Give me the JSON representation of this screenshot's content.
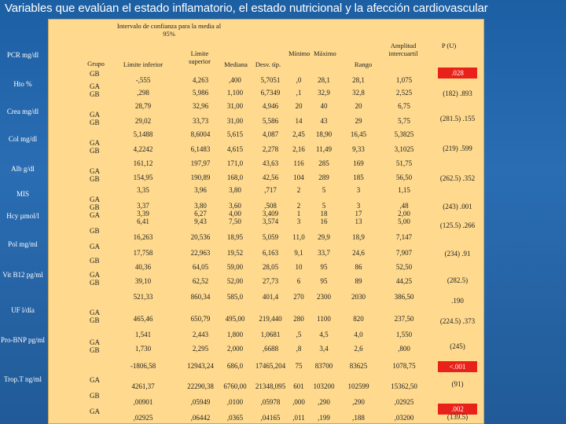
{
  "title": "Variables que evalúan el estado inflamatorio, el estado nutricional y la afección cardiovascular",
  "header": {
    "ci": "Intervalo de confianza para la media al 95%",
    "grupo": "Grupo",
    "limite_inferior": "Límite inferior",
    "limite_superior": "Límite superior",
    "mediana": "Mediana",
    "desv": "Desv. típ.",
    "minimo": "Mínimo",
    "maximo": "Máximo",
    "rango": "Rango",
    "amplitud": "Amplitud intercuartil",
    "p": "P (U)"
  },
  "variables": [
    {
      "label": "PCR mg/dl"
    },
    {
      "label": "Hto %"
    },
    {
      "label": "Crea mg/dl"
    },
    {
      "label": "Col mg/dl"
    },
    {
      "label": "Alb g/dl"
    },
    {
      "label": "MIS"
    },
    {
      "label": "Hcy µmol/l"
    },
    {
      "label": "Pol mg/ml"
    },
    {
      "label": "Vit B12 pg/ml"
    },
    {
      "label": "UF l/día"
    },
    {
      "label": "Pro-BNP pg/ml"
    },
    {
      "label": "Trop.T ng/ml"
    }
  ],
  "rows": [
    {
      "g": "GB",
      "li": "-,555",
      "ls": "4,263",
      "med": ",400",
      "sd": "5,7051",
      "min": ",0",
      "max": "28,1",
      "rng": "28,1",
      "aiq": "1,075"
    },
    {
      "g": "GA GB",
      "li": ",298",
      "ls": "5,986",
      "med": "1,100",
      "sd": "6,7349",
      "min": ",1",
      "max": "32,9",
      "rng": "32,8",
      "aiq": "2,525"
    },
    {
      "g": "",
      "li": "28,79",
      "ls": "32,96",
      "med": "31,00",
      "sd": "4,946",
      "min": "20",
      "max": "40",
      "rng": "20",
      "aiq": "6,75"
    },
    {
      "g": "GA GB",
      "li": "29,02",
      "ls": "33,73",
      "med": "31,00",
      "sd": "5,586",
      "min": "14",
      "max": "43",
      "rng": "29",
      "aiq": "5,75"
    },
    {
      "g": "",
      "li": "5,1488",
      "ls": "8,6004",
      "med": "5,615",
      "sd": "4,087",
      "min": "2,45",
      "max": "18,90",
      "rng": "16,45",
      "aiq": "5,3825"
    },
    {
      "g": "GA GB",
      "li": "4,2242",
      "ls": "6,1483",
      "med": "4,615",
      "sd": "2,278",
      "min": "2,16",
      "max": "11,49",
      "rng": "9,33",
      "aiq": "3,1025"
    },
    {
      "g": "",
      "li": "161,12",
      "ls": "197,97",
      "med": "171,0",
      "sd": "43,63",
      "min": "116",
      "max": "285",
      "rng": "169",
      "aiq": "51,75"
    },
    {
      "g": "GA GB",
      "li": "154,95",
      "ls": "190,89",
      "med": "168,0",
      "sd": "42,56",
      "min": "104",
      "max": "289",
      "rng": "185",
      "aiq": "56,50"
    },
    {
      "g": "",
      "li": "3,35",
      "ls": "3,96",
      "med": "3,80",
      "sd": ",717",
      "min": "2",
      "max": "5",
      "rng": "3",
      "aiq": "1,15"
    },
    {
      "g": "GA",
      "li": "3,37",
      "ls": "3,80",
      "med": "3,60",
      "sd": ",508",
      "min": "2",
      "max": "5",
      "rng": "3",
      "aiq": ",48"
    },
    {
      "g": "GB",
      "li": "3,39",
      "ls": "6,27",
      "med": "4,00",
      "sd": "3,409",
      "min": "1",
      "max": "18",
      "rng": "17",
      "aiq": "2,00"
    },
    {
      "g": "GA",
      "li": "6,41",
      "ls": "9,43",
      "med": "7,50",
      "sd": "3,574",
      "min": "3",
      "max": "16",
      "rng": "13",
      "aiq": "5,00"
    },
    {
      "g": "GB",
      "li": "16,263",
      "ls": "20,536",
      "med": "18,95",
      "sd": "5,059",
      "min": "11,0",
      "max": "29,9",
      "rng": "18,9",
      "aiq": "7,147"
    },
    {
      "g": "GA",
      "li": "17,758",
      "ls": "22,963",
      "med": "19,52",
      "sd": "6,163",
      "min": "9,1",
      "max": "33,7",
      "rng": "24,6",
      "aiq": "7,907"
    },
    {
      "g": "GB",
      "li": "40,36",
      "ls": "64,05",
      "med": "59,00",
      "sd": "28,05",
      "min": "10",
      "max": "95",
      "rng": "86",
      "aiq": "52,50"
    },
    {
      "g": "GA GB",
      "li": "39,10",
      "ls": "62,52",
      "med": "52,00",
      "sd": "27,73",
      "min": "6",
      "max": "95",
      "rng": "89",
      "aiq": "44,25"
    },
    {
      "g": "",
      "li": "521,33",
      "ls": "860,34",
      "med": "585,0",
      "sd": "401,4",
      "min": "270",
      "max": "2300",
      "rng": "2030",
      "aiq": "386,50"
    },
    {
      "g": "GA GB",
      "li": "465,46",
      "ls": "650,79",
      "med": "495,00",
      "sd": "219,440",
      "min": "280",
      "max": "1100",
      "rng": "820",
      "aiq": "237,50"
    },
    {
      "g": "",
      "li": "1,541",
      "ls": "2,443",
      "med": "1,800",
      "sd": "1,0681",
      "min": ",5",
      "max": "4,5",
      "rng": "4,0",
      "aiq": "1,550"
    },
    {
      "g": "GA GB",
      "li": "1,730",
      "ls": "2,295",
      "med": "2,000",
      "sd": ",6688",
      "min": ",8",
      "max": "3,4",
      "rng": "2,6",
      "aiq": ",800"
    },
    {
      "g": "",
      "li": "-1806,58",
      "ls": "12943,24",
      "med": "686,0",
      "sd": "17465,204",
      "min": "75",
      "max": "83700",
      "rng": "83625",
      "aiq": "1078,75"
    },
    {
      "g": "GA",
      "li": "4261,37",
      "ls": "22290,38",
      "med": "6760,00",
      "sd": "21348,095",
      "min": "601",
      "max": "103200",
      "rng": "102599",
      "aiq": "15362,50"
    },
    {
      "g": "GB",
      "li": ",00901",
      "ls": ",05949",
      "med": ",0100",
      "sd": ",05978",
      "min": ",000",
      "max": ",290",
      "rng": ",290",
      "aiq": ",02925"
    },
    {
      "g": "GA",
      "li": ",02925",
      "ls": ",06442",
      "med": ",0365",
      "sd": ",04165",
      "min": ",011",
      "max": ",199",
      "rng": ",188",
      "aiq": ",03200"
    }
  ],
  "p_values": [
    {
      "text": ".028",
      "red": true
    },
    {
      "text": "(182) .893",
      "red": false
    },
    {
      "text": "(281.5) .155",
      "red": false
    },
    {
      "text": "(219) .599",
      "red": false
    },
    {
      "text": "(262.5) .352",
      "red": false
    },
    {
      "text": "(243) .001",
      "red": "partial"
    },
    {
      "text": "(125.5) .266",
      "red": false
    },
    {
      "text": "(234) .91",
      "red": false
    },
    {
      "text": "(282.5)",
      "red": false
    },
    {
      "text": ".190",
      "red": false
    },
    {
      "text": "(224.5) .373",
      "red": false
    },
    {
      "text": "(245)",
      "red": false
    },
    {
      "text": "<.001",
      "red": true
    },
    {
      "text": "(91)",
      "red": false
    },
    {
      "text": ".002",
      "red": true
    },
    {
      "text": "(139.5)",
      "red": false
    }
  ],
  "colors": {
    "table_bg": "#ffda8e",
    "slide_bg": "#2a6db3",
    "red": "#e8211a"
  }
}
